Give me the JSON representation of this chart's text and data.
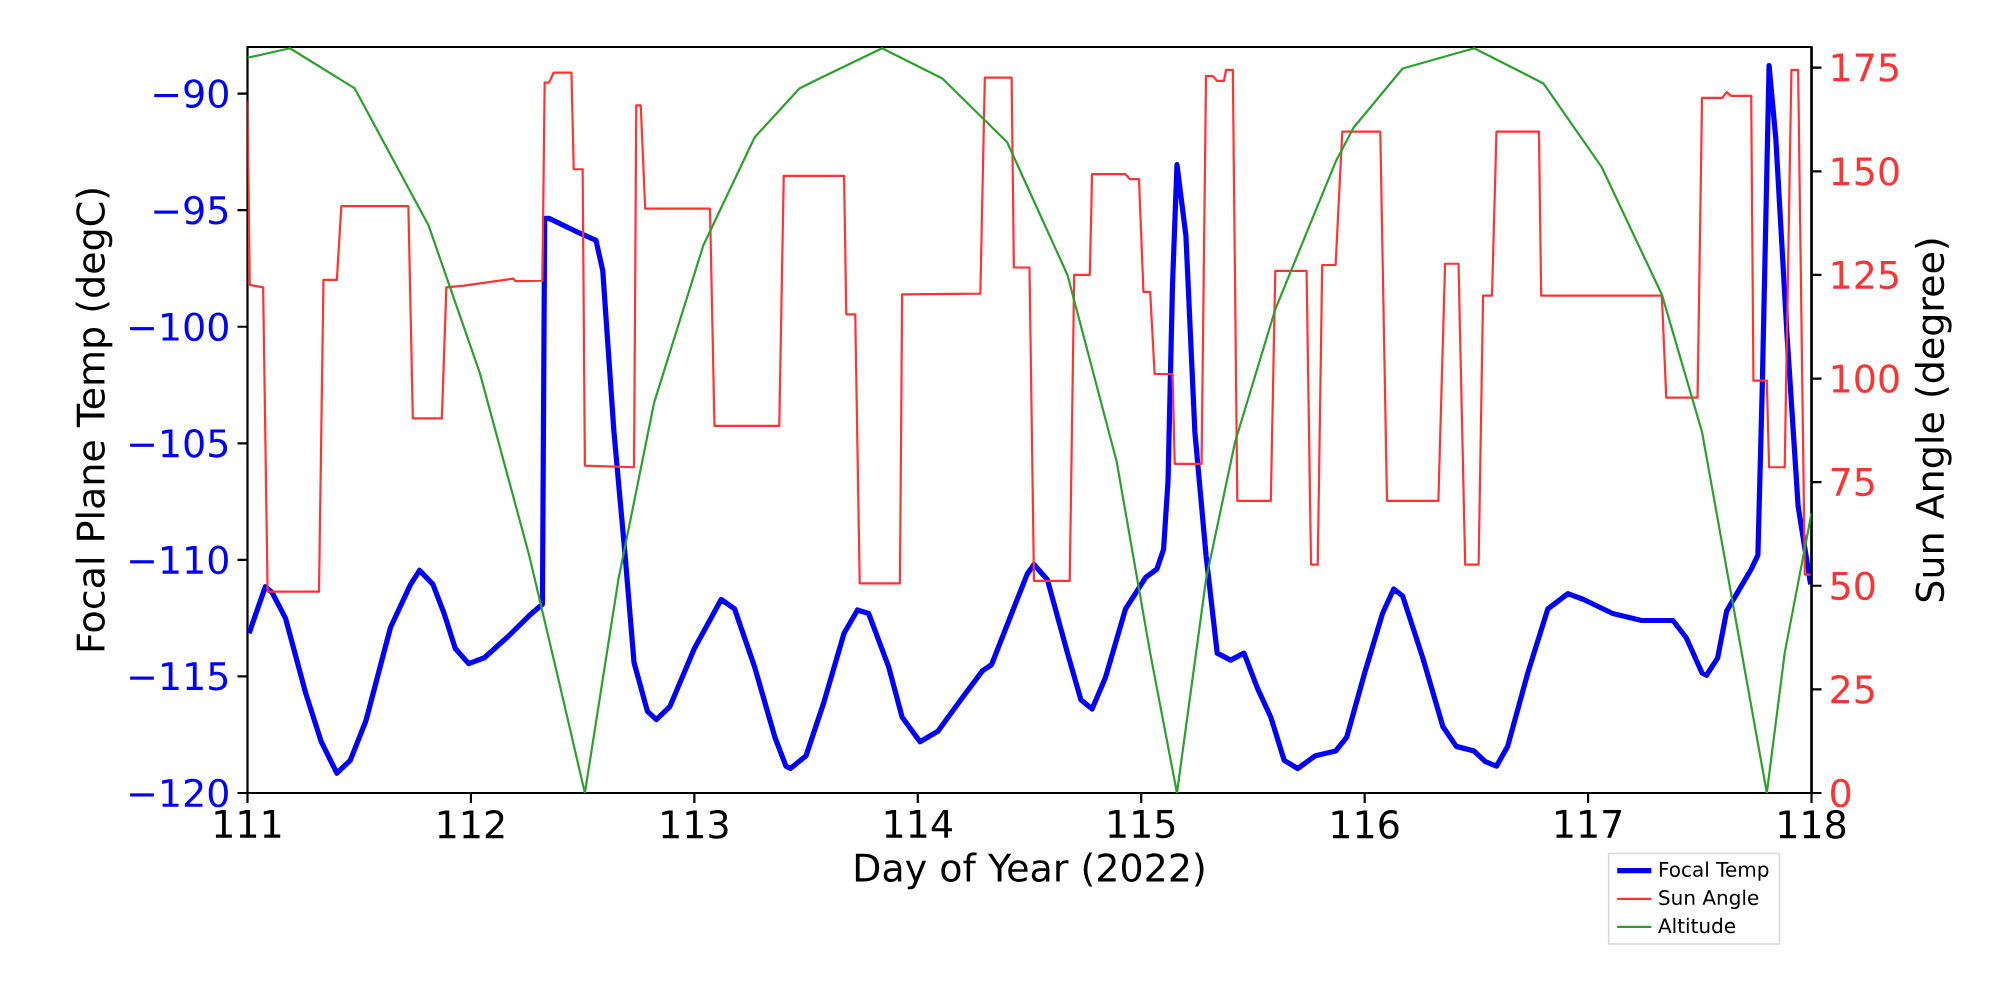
{
  "chart_data": {
    "type": "line",
    "xlabel": "Day of Year (2022)",
    "ylabel": "Focal Plane Temp (degC)",
    "y2label": "Sun Angle (degree)",
    "xlim": [
      111,
      118
    ],
    "xticks": [
      111,
      112,
      113,
      114,
      115,
      116,
      117,
      118
    ],
    "ylim": [
      -120,
      -88
    ],
    "yticks": [
      {
        "value": -120,
        "label": "−120"
      },
      {
        "value": -115,
        "label": "−115"
      },
      {
        "value": -110,
        "label": "−110"
      },
      {
        "value": -105,
        "label": "−105"
      },
      {
        "value": -100,
        "label": "−100"
      },
      {
        "value": -95,
        "label": "−95"
      },
      {
        "value": -90,
        "label": "−90"
      }
    ],
    "y2lim": [
      0,
      180
    ],
    "y2ticks": [
      0,
      25,
      50,
      75,
      100,
      125,
      150,
      175
    ],
    "legend": "bottom right",
    "series": [
      {
        "name": "Focal Temp",
        "color": "#0000ff",
        "x": [
          111.007,
          111.08,
          111.11,
          111.17,
          111.26,
          111.33,
          111.4,
          111.46,
          111.53,
          111.64,
          111.73,
          111.77,
          111.83,
          111.88,
          111.93,
          111.99,
          112.06,
          112.17,
          112.26,
          112.32,
          112.33,
          112.35,
          112.49,
          112.56,
          112.59,
          112.64,
          112.69,
          112.73,
          112.79,
          112.83,
          112.89,
          113.0,
          113.12,
          113.18,
          113.27,
          113.36,
          113.41,
          113.43,
          113.5,
          113.58,
          113.67,
          113.73,
          113.78,
          113.87,
          113.93,
          114.01,
          114.09,
          114.2,
          114.29,
          114.33,
          114.42,
          114.49,
          114.52,
          114.58,
          114.67,
          114.73,
          114.78,
          114.84,
          114.93,
          115.02,
          115.07,
          115.1,
          115.12,
          115.14,
          115.16,
          115.2,
          115.24,
          115.29,
          115.34,
          115.4,
          115.46,
          115.52,
          115.58,
          115.64,
          115.7,
          115.78,
          115.87,
          115.92,
          116.0,
          116.08,
          116.13,
          116.17,
          116.26,
          116.35,
          116.41,
          116.49,
          116.54,
          116.59,
          116.64,
          116.73,
          116.82,
          116.91,
          116.98,
          117.11,
          117.24,
          117.38,
          117.44,
          117.51,
          117.53,
          117.58,
          117.62,
          117.69,
          117.73,
          117.76,
          117.78,
          117.81,
          117.84,
          117.89,
          117.94,
          117.996
        ],
        "values": [
          -113.15,
          -111.15,
          -111.4,
          -112.5,
          -115.7,
          -117.8,
          -119.15,
          -118.6,
          -116.9,
          -112.9,
          -111.05,
          -110.45,
          -111.05,
          -112.3,
          -113.8,
          -114.45,
          -114.2,
          -113.25,
          -112.4,
          -111.9,
          -95.35,
          -95.35,
          -96.0,
          -96.3,
          -97.6,
          -104.5,
          -109.8,
          -114.4,
          -116.5,
          -116.85,
          -116.3,
          -113.8,
          -111.7,
          -112.1,
          -114.6,
          -117.6,
          -118.85,
          -118.95,
          -118.4,
          -116.1,
          -113.15,
          -112.15,
          -112.3,
          -114.6,
          -116.75,
          -117.8,
          -117.35,
          -115.9,
          -114.75,
          -114.5,
          -112.3,
          -110.6,
          -110.2,
          -110.85,
          -114.0,
          -116.0,
          -116.4,
          -115.05,
          -112.1,
          -110.75,
          -110.4,
          -109.55,
          -106.6,
          -98.2,
          -93.05,
          -96.1,
          -104.5,
          -109.8,
          -114.0,
          -114.3,
          -114.0,
          -115.5,
          -116.75,
          -118.6,
          -118.95,
          -118.4,
          -118.2,
          -117.6,
          -114.85,
          -112.3,
          -111.25,
          -111.55,
          -114.2,
          -117.15,
          -118.0,
          -118.2,
          -118.65,
          -118.85,
          -118.0,
          -114.85,
          -112.1,
          -111.45,
          -111.7,
          -112.3,
          -112.6,
          -112.6,
          -113.35,
          -114.85,
          -114.95,
          -114.2,
          -112.2,
          -111.05,
          -110.4,
          -109.8,
          -102.4,
          -88.8,
          -91.9,
          -100.3,
          -107.7,
          -111.05
        ]
      },
      {
        "name": "Sun Angle",
        "color": "#ff3333",
        "axis": "y2",
        "x": [
          111.0,
          111.01,
          111.07,
          111.09,
          111.32,
          111.34,
          111.4,
          111.42,
          111.72,
          111.74,
          111.87,
          111.89,
          111.97,
          112.19,
          112.2,
          112.32,
          112.33,
          112.35,
          112.37,
          112.45,
          112.46,
          112.5,
          112.51,
          112.73,
          112.74,
          112.76,
          112.78,
          113.07,
          113.09,
          113.38,
          113.4,
          113.67,
          113.68,
          113.72,
          113.74,
          113.92,
          113.93,
          114.28,
          114.3,
          114.42,
          114.43,
          114.5,
          114.52,
          114.68,
          114.7,
          114.77,
          114.78,
          114.93,
          114.95,
          114.99,
          115.01,
          115.04,
          115.06,
          115.14,
          115.15,
          115.27,
          115.29,
          115.32,
          115.34,
          115.37,
          115.38,
          115.41,
          115.43,
          115.58,
          115.6,
          115.74,
          115.76,
          115.79,
          115.81,
          115.87,
          115.9,
          116.07,
          116.1,
          116.33,
          116.36,
          116.42,
          116.45,
          116.51,
          116.53,
          116.57,
          116.59,
          116.78,
          116.79,
          117.33,
          117.35,
          117.49,
          117.51,
          117.6,
          117.62,
          117.64,
          117.73,
          117.74,
          117.8,
          117.81,
          117.88,
          117.91,
          117.94,
          117.97,
          117.996
        ],
        "values": [
          167.1,
          122.6,
          122.0,
          48.6,
          48.6,
          123.8,
          123.8,
          141.6,
          141.6,
          90.4,
          90.4,
          122.0,
          122.4,
          124.1,
          123.5,
          123.6,
          171.4,
          171.4,
          173.8,
          173.8,
          150.5,
          150.5,
          79.0,
          78.6,
          165.9,
          165.9,
          141.0,
          141.0,
          88.6,
          88.6,
          148.9,
          148.9,
          115.5,
          115.5,
          50.6,
          50.6,
          120.3,
          120.5,
          172.6,
          172.6,
          126.8,
          126.8,
          51.2,
          51.2,
          125.0,
          125.0,
          149.3,
          149.3,
          148.1,
          148.1,
          120.9,
          120.9,
          101.1,
          101.1,
          79.4,
          79.4,
          173.0,
          173.0,
          171.8,
          171.8,
          174.5,
          174.5,
          70.5,
          70.5,
          126.0,
          126.0,
          55.1,
          55.1,
          127.4,
          127.4,
          159.6,
          159.6,
          70.5,
          70.5,
          127.7,
          127.7,
          55.1,
          55.1,
          120.0,
          120.0,
          159.6,
          159.6,
          120.0,
          120.0,
          95.4,
          95.4,
          167.7,
          167.7,
          169.1,
          168.2,
          168.2,
          99.5,
          99.5,
          78.6,
          78.6,
          174.5,
          174.5,
          52.7,
          52.7
        ]
      },
      {
        "name": "Altitude",
        "color": "#2ca02c",
        "axis": "y2",
        "x": [
          111.0,
          111.19,
          111.48,
          111.81,
          112.04,
          112.26,
          112.4,
          112.51,
          112.66,
          112.82,
          113.04,
          113.27,
          113.47,
          113.56,
          113.84,
          114.11,
          114.4,
          114.67,
          114.89,
          115.04,
          115.16,
          115.29,
          115.42,
          115.6,
          115.87,
          115.95,
          116.17,
          116.49,
          116.8,
          117.06,
          117.33,
          117.51,
          117.66,
          117.8,
          117.88,
          118.0
        ],
        "values": [
          177.4,
          179.7,
          170,
          137,
          101.3,
          57.5,
          25.5,
          0,
          51.5,
          94.2,
          132.1,
          158.2,
          170,
          172.4,
          179.7,
          172.4,
          157,
          125,
          80,
          33.8,
          0,
          51.5,
          84.7,
          116.7,
          152.3,
          160.5,
          174.8,
          179.7,
          171.2,
          151.1,
          120.3,
          87.1,
          42.1,
          0,
          33.8,
          67.5
        ]
      }
    ]
  }
}
